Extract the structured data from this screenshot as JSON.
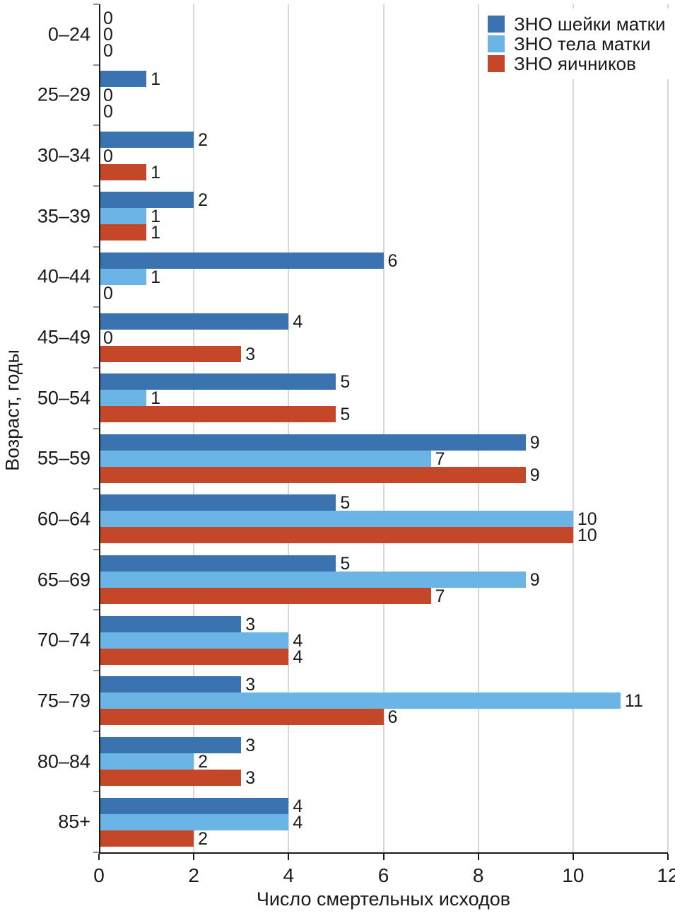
{
  "chart_data": {
    "type": "bar",
    "orientation": "horizontal",
    "title": "",
    "xlabel": "Число смертельных исходов",
    "ylabel": "Возраст, годы",
    "xlim": [
      0,
      12
    ],
    "xticks": [
      0,
      2,
      4,
      6,
      8,
      10,
      12
    ],
    "grid": "vertical",
    "bar_value_labels": true,
    "legend_position": "top-right",
    "categories": [
      "0–24",
      "25–29",
      "30–34",
      "35–39",
      "40–44",
      "45–49",
      "50–54",
      "55–59",
      "60–64",
      "65–69",
      "70–74",
      "75–79",
      "80–84",
      "85+"
    ],
    "series": [
      {
        "name": "ЗНО шейки матки",
        "color": "#3a73b0",
        "values": [
          0,
          1,
          2,
          2,
          6,
          4,
          5,
          9,
          5,
          5,
          3,
          3,
          3,
          4
        ]
      },
      {
        "name": "ЗНО тела матки",
        "color": "#6ab4e6",
        "values": [
          0,
          0,
          0,
          1,
          1,
          0,
          1,
          7,
          10,
          9,
          4,
          11,
          2,
          4
        ]
      },
      {
        "name": "ЗНО яичников",
        "color": "#c5472a",
        "values": [
          0,
          0,
          1,
          1,
          0,
          3,
          5,
          9,
          10,
          7,
          4,
          6,
          3,
          2
        ]
      }
    ]
  },
  "colors": {
    "gridline": "#d6d6d6",
    "axis": "#1a1a1a",
    "tick": "#8f8f8f",
    "text": "#1a1a1a",
    "background": "#ffffff"
  }
}
